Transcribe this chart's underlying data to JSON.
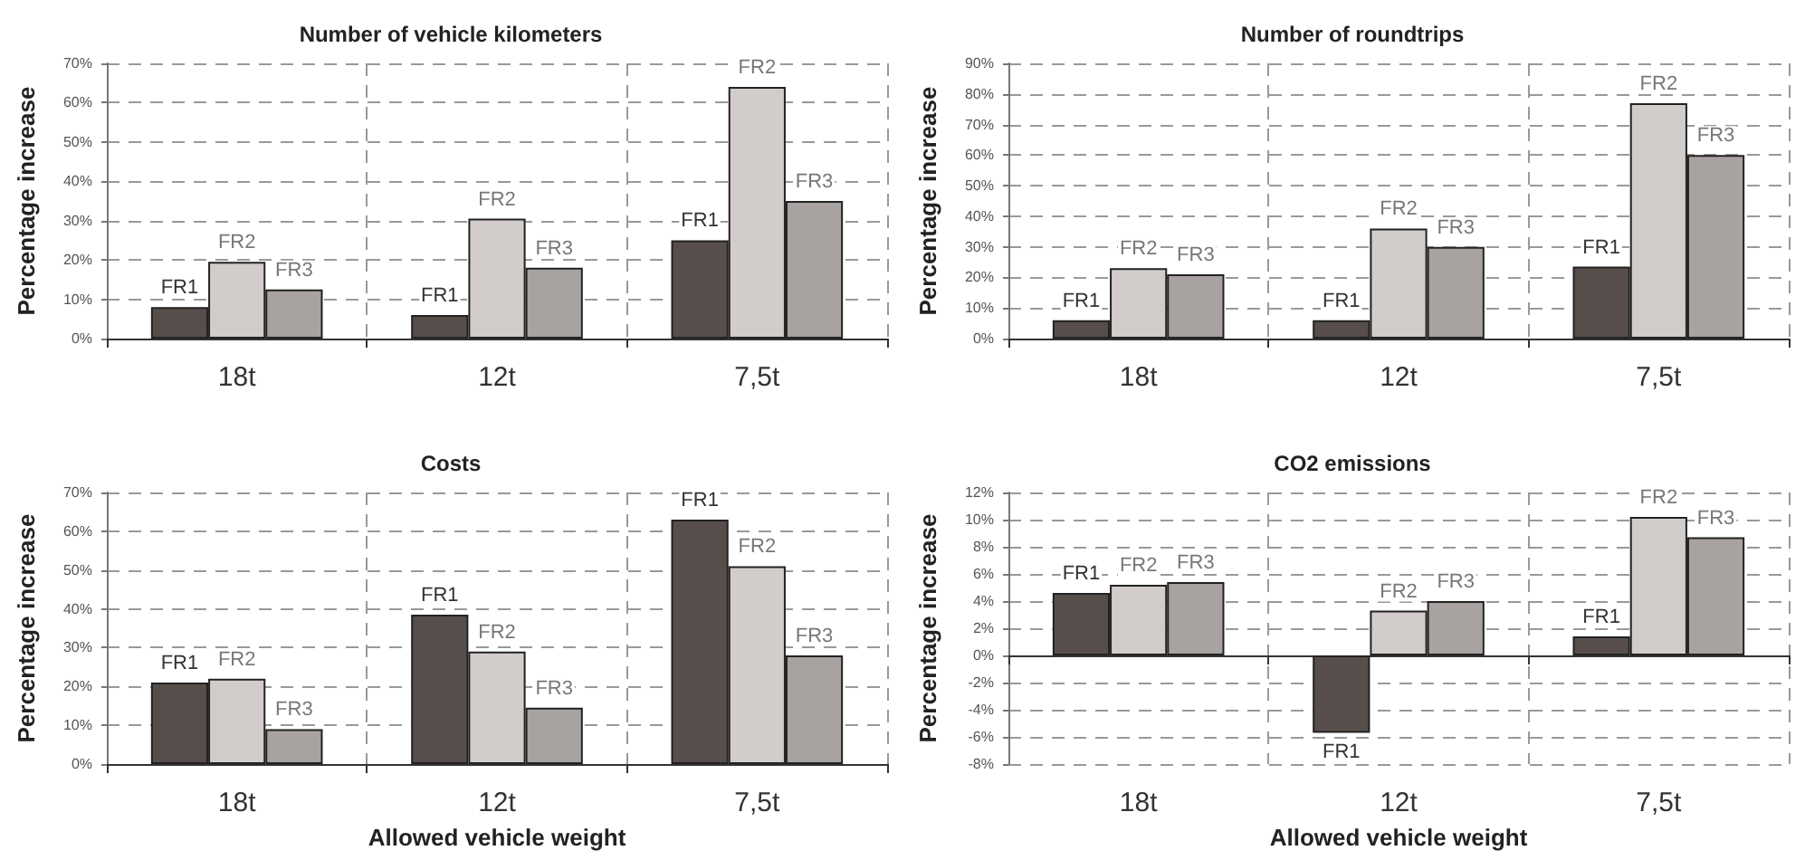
{
  "chart_data": [
    {
      "type": "bar",
      "title": "Number of vehicle kilometers",
      "ylabel": "Percentage increase",
      "categories": [
        "18t",
        "12t",
        "7,5t"
      ],
      "series": [
        {
          "name": "FR1",
          "color": "#574e4b",
          "values": [
            8,
            6,
            25
          ]
        },
        {
          "name": "FR2",
          "color": "#d2cdcb",
          "values": [
            19.5,
            30.5,
            64
          ]
        },
        {
          "name": "FR3",
          "color": "#a8a3a1",
          "values": [
            12.5,
            18,
            35
          ]
        }
      ],
      "ylim": [
        0,
        70
      ],
      "yticks": [
        {
          "value": 0,
          "label": "0%"
        },
        {
          "value": 10,
          "label": "10%"
        },
        {
          "value": 20,
          "label": "20%"
        },
        {
          "value": 30,
          "label": "30%"
        },
        {
          "value": 40,
          "label": "40%"
        },
        {
          "value": 50,
          "label": "50%"
        },
        {
          "value": 60,
          "label": "60%"
        },
        {
          "value": 70,
          "label": "70%"
        }
      ],
      "grid": true,
      "legend": false
    },
    {
      "type": "bar",
      "title": "Number of roundtrips",
      "ylabel": "Percentage increase",
      "categories": [
        "18t",
        "12t",
        "7,5t"
      ],
      "series": [
        {
          "name": "FR1",
          "color": "#574e4b",
          "values": [
            6,
            6,
            23.5
          ]
        },
        {
          "name": "FR2",
          "color": "#d2cdcb",
          "values": [
            23,
            36,
            77
          ]
        },
        {
          "name": "FR3",
          "color": "#a8a3a1",
          "values": [
            21,
            30,
            60
          ]
        }
      ],
      "ylim": [
        0,
        90
      ],
      "yticks": [
        {
          "value": 0,
          "label": "0%"
        },
        {
          "value": 10,
          "label": "10%"
        },
        {
          "value": 20,
          "label": "20%"
        },
        {
          "value": 30,
          "label": "30%"
        },
        {
          "value": 40,
          "label": "40%"
        },
        {
          "value": 50,
          "label": "50%"
        },
        {
          "value": 60,
          "label": "60%"
        },
        {
          "value": 70,
          "label": "70%"
        },
        {
          "value": 80,
          "label": "80%"
        },
        {
          "value": 90,
          "label": "90%"
        }
      ],
      "grid": true,
      "legend": false
    },
    {
      "type": "bar",
      "title": "Costs",
      "xlabel": "Allowed vehicle weight",
      "ylabel": "Percentage increase",
      "categories": [
        "18t",
        "12t",
        "7,5t"
      ],
      "series": [
        {
          "name": "FR1",
          "color": "#574e4b",
          "values": [
            21,
            38.5,
            63
          ]
        },
        {
          "name": "FR2",
          "color": "#d2cdcb",
          "values": [
            22,
            29,
            51
          ]
        },
        {
          "name": "FR3",
          "color": "#a8a3a1",
          "values": [
            9,
            14.5,
            28
          ]
        }
      ],
      "ylim": [
        0,
        70
      ],
      "yticks": [
        {
          "value": 0,
          "label": "0%"
        },
        {
          "value": 10,
          "label": "10%"
        },
        {
          "value": 20,
          "label": "20%"
        },
        {
          "value": 30,
          "label": "30%"
        },
        {
          "value": 40,
          "label": "40%"
        },
        {
          "value": 50,
          "label": "50%"
        },
        {
          "value": 60,
          "label": "60%"
        },
        {
          "value": 70,
          "label": "70%"
        }
      ],
      "grid": true,
      "legend": false
    },
    {
      "type": "bar",
      "title": "CO2 emissions",
      "xlabel": "Allowed vehicle weight",
      "ylabel": "Percentage increase",
      "categories": [
        "18t",
        "12t",
        "7,5t"
      ],
      "series": [
        {
          "name": "FR1",
          "color": "#574e4b",
          "values": [
            4.6,
            -5.7,
            1.4
          ]
        },
        {
          "name": "FR2",
          "color": "#d2cdcb",
          "values": [
            5.2,
            3.3,
            10.2
          ]
        },
        {
          "name": "FR3",
          "color": "#a8a3a1",
          "values": [
            5.4,
            4.0,
            8.7
          ]
        }
      ],
      "ylim": [
        -8,
        12
      ],
      "yticks": [
        {
          "value": -8,
          "label": "-8%"
        },
        {
          "value": -6,
          "label": "-6%"
        },
        {
          "value": -4,
          "label": "-4%"
        },
        {
          "value": -2,
          "label": "-2%"
        },
        {
          "value": 0,
          "label": "0%"
        },
        {
          "value": 2,
          "label": "2%"
        },
        {
          "value": 4,
          "label": "4%"
        },
        {
          "value": 6,
          "label": "6%"
        },
        {
          "value": 8,
          "label": "8%"
        },
        {
          "value": 10,
          "label": "10%"
        },
        {
          "value": 12,
          "label": "12%"
        }
      ],
      "grid": true,
      "legend": false
    }
  ]
}
